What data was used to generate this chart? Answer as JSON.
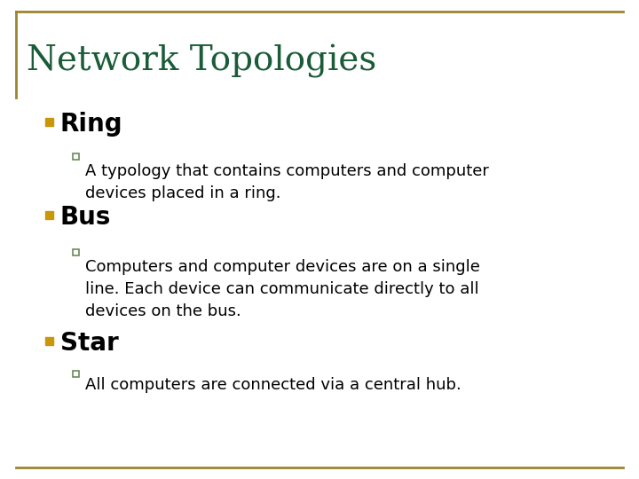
{
  "title": "Network Topologies",
  "title_color": "#1a5c38",
  "title_fontsize": 28,
  "background_color": "#ffffff",
  "border_color": "#9b8530",
  "bullet1_label": "Ring",
  "bullet1_sub": "A typology that contains computers and computer\ndevices placed in a ring.",
  "bullet2_label": "Bus",
  "bullet2_sub": "Computers and computer devices are on a single\nline. Each device can communicate directly to all\ndevices on the bus.",
  "bullet3_label": "Star",
  "bullet3_sub": "All computers are connected via a central hub.",
  "bullet_color": "#c8980a",
  "bullet_fontsize": 20,
  "sub_fontsize": 13,
  "sub_color": "#000000",
  "sub_square_color": "#6a8a5a"
}
